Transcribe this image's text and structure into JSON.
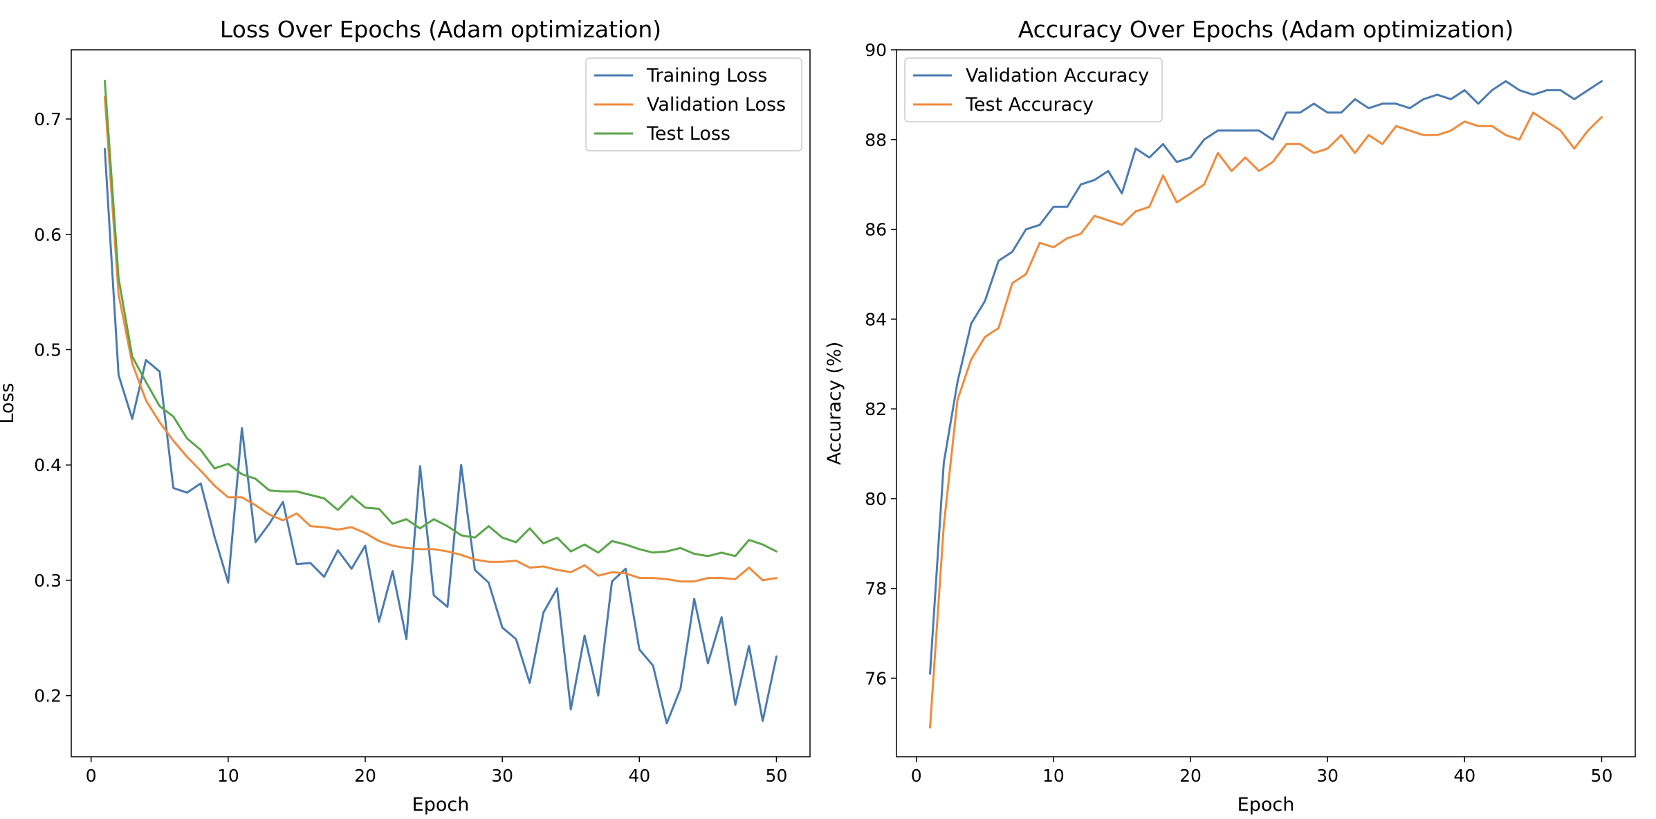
{
  "chart_data": [
    {
      "type": "line",
      "title": "Loss Over Epochs (Adam optimization)",
      "xlabel": "Epoch",
      "ylabel": "Loss",
      "xlim": [
        -1.45,
        52.45
      ],
      "ylim": [
        0.147,
        0.76
      ],
      "xticks": [
        0,
        10,
        20,
        30,
        40,
        50
      ],
      "yticks": [
        0.2,
        0.3,
        0.4,
        0.5,
        0.6,
        0.7
      ],
      "ytick_labels": [
        "0.2",
        "0.3",
        "0.4",
        "0.5",
        "0.6",
        "0.7"
      ],
      "legend_position": "top-right",
      "grid": false,
      "x": [
        1,
        2,
        3,
        4,
        5,
        6,
        7,
        8,
        9,
        10,
        11,
        12,
        13,
        14,
        15,
        16,
        17,
        18,
        19,
        20,
        21,
        22,
        23,
        24,
        25,
        26,
        27,
        28,
        29,
        30,
        31,
        32,
        33,
        34,
        35,
        36,
        37,
        38,
        39,
        40,
        41,
        42,
        43,
        44,
        45,
        46,
        47,
        48,
        49,
        50
      ],
      "series": [
        {
          "name": "Training Loss",
          "color": "#4a7bb0",
          "values": [
            0.674,
            0.478,
            0.44,
            0.491,
            0.481,
            0.38,
            0.376,
            0.384,
            0.338,
            0.298,
            0.432,
            0.333,
            0.349,
            0.368,
            0.314,
            0.315,
            0.303,
            0.326,
            0.31,
            0.33,
            0.264,
            0.308,
            0.249,
            0.399,
            0.287,
            0.277,
            0.4,
            0.309,
            0.298,
            0.259,
            0.249,
            0.211,
            0.272,
            0.293,
            0.188,
            0.252,
            0.2,
            0.299,
            0.31,
            0.24,
            0.226,
            0.176,
            0.206,
            0.284,
            0.228,
            0.268,
            0.192,
            0.243,
            0.178,
            0.234
          ]
        },
        {
          "name": "Validation Loss",
          "color": "#f08a3c",
          "values": [
            0.719,
            0.548,
            0.488,
            0.456,
            0.437,
            0.421,
            0.407,
            0.395,
            0.382,
            0.372,
            0.372,
            0.365,
            0.357,
            0.352,
            0.358,
            0.347,
            0.346,
            0.344,
            0.346,
            0.341,
            0.334,
            0.33,
            0.328,
            0.327,
            0.327,
            0.325,
            0.322,
            0.318,
            0.316,
            0.316,
            0.317,
            0.311,
            0.312,
            0.309,
            0.307,
            0.313,
            0.304,
            0.307,
            0.306,
            0.302,
            0.302,
            0.301,
            0.299,
            0.299,
            0.302,
            0.302,
            0.301,
            0.311,
            0.3,
            0.302
          ]
        },
        {
          "name": "Test Loss",
          "color": "#5aa64a",
          "values": [
            0.733,
            0.562,
            0.494,
            0.472,
            0.451,
            0.442,
            0.423,
            0.413,
            0.397,
            0.401,
            0.392,
            0.388,
            0.378,
            0.377,
            0.377,
            0.374,
            0.371,
            0.361,
            0.373,
            0.363,
            0.362,
            0.349,
            0.353,
            0.345,
            0.353,
            0.347,
            0.339,
            0.337,
            0.347,
            0.337,
            0.333,
            0.345,
            0.332,
            0.337,
            0.325,
            0.331,
            0.324,
            0.334,
            0.331,
            0.327,
            0.324,
            0.325,
            0.328,
            0.323,
            0.321,
            0.324,
            0.321,
            0.335,
            0.331,
            0.325
          ]
        }
      ]
    },
    {
      "type": "line",
      "title": "Accuracy Over Epochs (Adam optimization)",
      "xlabel": "Epoch",
      "ylabel": "Accuracy (%)",
      "xlim": [
        -1.45,
        52.45
      ],
      "ylim": [
        74.25,
        90.0
      ],
      "xticks": [
        0,
        10,
        20,
        30,
        40,
        50
      ],
      "yticks": [
        76,
        78,
        80,
        82,
        84,
        86,
        88,
        90
      ],
      "ytick_labels": [
        "76",
        "78",
        "80",
        "82",
        "84",
        "86",
        "88",
        "90"
      ],
      "legend_position": "top-left",
      "grid": false,
      "x": [
        1,
        2,
        3,
        4,
        5,
        6,
        7,
        8,
        9,
        10,
        11,
        12,
        13,
        14,
        15,
        16,
        17,
        18,
        19,
        20,
        21,
        22,
        23,
        24,
        25,
        26,
        27,
        28,
        29,
        30,
        31,
        32,
        33,
        34,
        35,
        36,
        37,
        38,
        39,
        40,
        41,
        42,
        43,
        44,
        45,
        46,
        47,
        48,
        49,
        50
      ],
      "series": [
        {
          "name": "Validation Accuracy",
          "color": "#4a7bb0",
          "values": [
            76.1,
            80.8,
            82.6,
            83.9,
            84.4,
            85.3,
            85.5,
            86.0,
            86.1,
            86.5,
            86.5,
            87.0,
            87.1,
            87.3,
            86.8,
            87.8,
            87.6,
            87.9,
            87.5,
            87.6,
            88.0,
            88.2,
            88.2,
            88.2,
            88.2,
            88.0,
            88.6,
            88.6,
            88.8,
            88.6,
            88.6,
            88.9,
            88.7,
            88.8,
            88.8,
            88.7,
            88.9,
            89.0,
            88.9,
            89.1,
            88.8,
            89.1,
            89.3,
            89.1,
            89.0,
            89.1,
            89.1,
            88.9,
            89.1,
            89.3
          ]
        },
        {
          "name": "Test Accuracy",
          "color": "#f08a3c",
          "values": [
            74.9,
            79.4,
            82.2,
            83.1,
            83.6,
            83.8,
            84.8,
            85.0,
            85.7,
            85.6,
            85.8,
            85.9,
            86.3,
            86.2,
            86.1,
            86.4,
            86.5,
            87.2,
            86.6,
            86.8,
            87.0,
            87.7,
            87.3,
            87.6,
            87.3,
            87.5,
            87.9,
            87.9,
            87.7,
            87.8,
            88.1,
            87.7,
            88.1,
            87.9,
            88.3,
            88.2,
            88.1,
            88.1,
            88.2,
            88.4,
            88.3,
            88.3,
            88.1,
            88.0,
            88.6,
            88.4,
            88.2,
            87.8,
            88.2,
            88.5
          ]
        }
      ]
    }
  ]
}
